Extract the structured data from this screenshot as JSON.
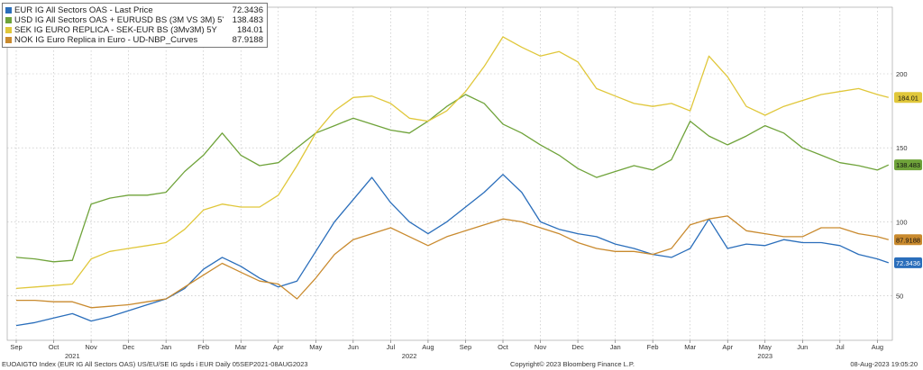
{
  "legend": [
    {
      "label": "EUR IG All Sectors OAS - Last Price",
      "value": "72.3436",
      "color": "#2a6ebb"
    },
    {
      "label": "USD IG All Sectors OAS + EURUSD BS (3M VS 3M) 5Y",
      "value": "138.483",
      "color": "#6fa33a"
    },
    {
      "label": "SEK IG EURO REPLICA - SEK-EUR BS (3Mv3M) 5Y",
      "value": "184.01",
      "color": "#e0c73a"
    },
    {
      "label": "NOK IG Euro Replica in Euro - UD-NBP_Curves",
      "value": "87.9188",
      "color": "#c98a2e"
    }
  ],
  "footer": {
    "left": "EUOAIGTO Index (EUR IG All Sectors OAS) US/EU/SE IG spds i EUR  Daily 05SEP2021-08AUG2023",
    "center": "Copyright© 2023 Bloomberg Finance L.P.",
    "right": "08-Aug-2023 19:05:20"
  },
  "chart_data": {
    "type": "line",
    "x_start": "2021-09",
    "x_end": "2023-08",
    "x_ticks": [
      "Sep",
      "Oct",
      "Nov",
      "Dec",
      "Jan",
      "Feb",
      "Mar",
      "Apr",
      "May",
      "Jun",
      "Jul",
      "Aug",
      "Sep",
      "Oct",
      "Nov",
      "Dec",
      "Jan",
      "Feb",
      "Mar",
      "Apr",
      "May",
      "Jun",
      "Jul",
      "Aug"
    ],
    "year_labels": [
      {
        "label": "2021",
        "month_index": 1.5
      },
      {
        "label": "2022",
        "month_index": 10.5
      },
      {
        "label": "2023",
        "month_index": 20
      }
    ],
    "y_ticks": [
      50,
      100,
      150,
      200
    ],
    "ylim": [
      20,
      245
    ],
    "grid": true,
    "legend_position": "top-left",
    "series": [
      {
        "name": "EUR IG All Sectors OAS - Last Price",
        "color": "#2a6ebb",
        "last": "72.3436",
        "values": [
          [
            0,
            30
          ],
          [
            0.5,
            32
          ],
          [
            1,
            35
          ],
          [
            1.5,
            38
          ],
          [
            2,
            33
          ],
          [
            2.5,
            36
          ],
          [
            3,
            40
          ],
          [
            3.5,
            44
          ],
          [
            4,
            48
          ],
          [
            4.5,
            55
          ],
          [
            5,
            68
          ],
          [
            5.5,
            76
          ],
          [
            6,
            70
          ],
          [
            6.5,
            62
          ],
          [
            7,
            56
          ],
          [
            7.5,
            60
          ],
          [
            8,
            80
          ],
          [
            8.5,
            100
          ],
          [
            9,
            115
          ],
          [
            9.5,
            130
          ],
          [
            10,
            113
          ],
          [
            10.5,
            100
          ],
          [
            11,
            92
          ],
          [
            11.5,
            100
          ],
          [
            12,
            110
          ],
          [
            12.5,
            120
          ],
          [
            13,
            132
          ],
          [
            13.5,
            120
          ],
          [
            14,
            100
          ],
          [
            14.5,
            95
          ],
          [
            15,
            92
          ],
          [
            15.5,
            90
          ],
          [
            16,
            85
          ],
          [
            16.5,
            82
          ],
          [
            17,
            78
          ],
          [
            17.5,
            76
          ],
          [
            18,
            82
          ],
          [
            18.5,
            102
          ],
          [
            19,
            82
          ],
          [
            19.5,
            85
          ],
          [
            20,
            84
          ],
          [
            20.5,
            88
          ],
          [
            21,
            86
          ],
          [
            21.5,
            86
          ],
          [
            22,
            84
          ],
          [
            22.5,
            78
          ],
          [
            23,
            75
          ],
          [
            23.3,
            72.3436
          ]
        ]
      },
      {
        "name": "USD IG All Sectors OAS + EURUSD BS (3M VS 3M) 5Y",
        "color": "#6fa33a",
        "last": "138.483",
        "values": [
          [
            0,
            76
          ],
          [
            0.5,
            75
          ],
          [
            1,
            73
          ],
          [
            1.5,
            74
          ],
          [
            2,
            112
          ],
          [
            2.5,
            116
          ],
          [
            3,
            118
          ],
          [
            3.5,
            118
          ],
          [
            4,
            120
          ],
          [
            4.5,
            134
          ],
          [
            5,
            145
          ],
          [
            5.5,
            160
          ],
          [
            6,
            145
          ],
          [
            6.5,
            138
          ],
          [
            7,
            140
          ],
          [
            7.5,
            150
          ],
          [
            8,
            160
          ],
          [
            8.5,
            165
          ],
          [
            9,
            170
          ],
          [
            9.5,
            166
          ],
          [
            10,
            162
          ],
          [
            10.5,
            160
          ],
          [
            11,
            168
          ],
          [
            11.5,
            178
          ],
          [
            12,
            186
          ],
          [
            12.5,
            180
          ],
          [
            13,
            166
          ],
          [
            13.5,
            160
          ],
          [
            14,
            152
          ],
          [
            14.5,
            145
          ],
          [
            15,
            136
          ],
          [
            15.5,
            130
          ],
          [
            16,
            134
          ],
          [
            16.5,
            138
          ],
          [
            17,
            135
          ],
          [
            17.5,
            142
          ],
          [
            18,
            168
          ],
          [
            18.5,
            158
          ],
          [
            19,
            152
          ],
          [
            19.5,
            158
          ],
          [
            20,
            165
          ],
          [
            20.5,
            160
          ],
          [
            21,
            150
          ],
          [
            21.5,
            145
          ],
          [
            22,
            140
          ],
          [
            22.5,
            138
          ],
          [
            23,
            135
          ],
          [
            23.3,
            138.483
          ]
        ]
      },
      {
        "name": "SEK IG EURO REPLICA - SEK-EUR BS (3Mv3M) 5Y",
        "color": "#e0c73a",
        "last": "184.01",
        "values": [
          [
            0,
            55
          ],
          [
            0.5,
            56
          ],
          [
            1,
            57
          ],
          [
            1.5,
            58
          ],
          [
            2,
            75
          ],
          [
            2.5,
            80
          ],
          [
            3,
            82
          ],
          [
            3.5,
            84
          ],
          [
            4,
            86
          ],
          [
            4.5,
            95
          ],
          [
            5,
            108
          ],
          [
            5.5,
            112
          ],
          [
            6,
            110
          ],
          [
            6.5,
            110
          ],
          [
            7,
            118
          ],
          [
            7.5,
            138
          ],
          [
            8,
            160
          ],
          [
            8.5,
            175
          ],
          [
            9,
            184
          ],
          [
            9.5,
            185
          ],
          [
            10,
            180
          ],
          [
            10.5,
            170
          ],
          [
            11,
            168
          ],
          [
            11.5,
            175
          ],
          [
            12,
            188
          ],
          [
            12.5,
            205
          ],
          [
            13,
            225
          ],
          [
            13.5,
            218
          ],
          [
            14,
            212
          ],
          [
            14.5,
            215
          ],
          [
            15,
            208
          ],
          [
            15.5,
            190
          ],
          [
            16,
            185
          ],
          [
            16.5,
            180
          ],
          [
            17,
            178
          ],
          [
            17.5,
            180
          ],
          [
            18,
            175
          ],
          [
            18.5,
            212
          ],
          [
            19,
            198
          ],
          [
            19.5,
            178
          ],
          [
            20,
            172
          ],
          [
            20.5,
            178
          ],
          [
            21,
            182
          ],
          [
            21.5,
            186
          ],
          [
            22,
            188
          ],
          [
            22.5,
            190
          ],
          [
            23,
            186
          ],
          [
            23.3,
            184.01
          ]
        ]
      },
      {
        "name": "NOK IG Euro Replica in Euro - UD-NBP_Curves",
        "color": "#c98a2e",
        "last": "87.9188",
        "values": [
          [
            0,
            47
          ],
          [
            0.5,
            47
          ],
          [
            1,
            46
          ],
          [
            1.5,
            46
          ],
          [
            2,
            42
          ],
          [
            2.5,
            43
          ],
          [
            3,
            44
          ],
          [
            3.5,
            46
          ],
          [
            4,
            48
          ],
          [
            4.5,
            56
          ],
          [
            5,
            64
          ],
          [
            5.5,
            72
          ],
          [
            6,
            66
          ],
          [
            6.5,
            60
          ],
          [
            7,
            58
          ],
          [
            7.5,
            48
          ],
          [
            8,
            62
          ],
          [
            8.5,
            78
          ],
          [
            9,
            88
          ],
          [
            9.5,
            92
          ],
          [
            10,
            96
          ],
          [
            10.5,
            90
          ],
          [
            11,
            84
          ],
          [
            11.5,
            90
          ],
          [
            12,
            94
          ],
          [
            12.5,
            98
          ],
          [
            13,
            102
          ],
          [
            13.5,
            100
          ],
          [
            14,
            96
          ],
          [
            14.5,
            92
          ],
          [
            15,
            86
          ],
          [
            15.5,
            82
          ],
          [
            16,
            80
          ],
          [
            16.5,
            80
          ],
          [
            17,
            78
          ],
          [
            17.5,
            82
          ],
          [
            18,
            98
          ],
          [
            18.5,
            102
          ],
          [
            19,
            104
          ],
          [
            19.5,
            94
          ],
          [
            20,
            92
          ],
          [
            20.5,
            90
          ],
          [
            21,
            90
          ],
          [
            21.5,
            96
          ],
          [
            22,
            96
          ],
          [
            22.5,
            92
          ],
          [
            23,
            90
          ],
          [
            23.3,
            87.9188
          ]
        ]
      }
    ]
  }
}
